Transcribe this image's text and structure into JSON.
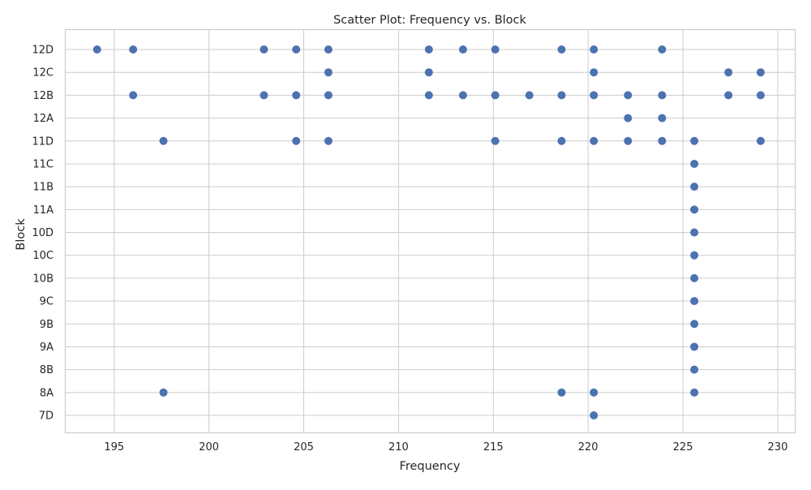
{
  "chart_data": {
    "type": "scatter",
    "title": "Scatter Plot: Frequency vs. Block",
    "xlabel": "Frequency",
    "ylabel": "Block",
    "xlim": [
      192.4,
      230.9
    ],
    "xticks": [
      195,
      200,
      205,
      210,
      215,
      220,
      225,
      230
    ],
    "y_categories": [
      "7D",
      "8A",
      "8B",
      "9A",
      "9B",
      "9C",
      "10B",
      "10C",
      "10D",
      "11A",
      "11B",
      "11C",
      "11D",
      "12A",
      "12B",
      "12C",
      "12D"
    ],
    "grid": true,
    "marker_color": "#4c72b0",
    "points": [
      {
        "x": 194.1,
        "y": "12D"
      },
      {
        "x": 196.0,
        "y": "12D"
      },
      {
        "x": 196.0,
        "y": "12B"
      },
      {
        "x": 197.6,
        "y": "11D"
      },
      {
        "x": 197.6,
        "y": "8A"
      },
      {
        "x": 202.9,
        "y": "12D"
      },
      {
        "x": 202.9,
        "y": "12B"
      },
      {
        "x": 204.6,
        "y": "12D"
      },
      {
        "x": 204.6,
        "y": "12B"
      },
      {
        "x": 204.6,
        "y": "11D"
      },
      {
        "x": 206.3,
        "y": "12D"
      },
      {
        "x": 206.3,
        "y": "12C"
      },
      {
        "x": 206.3,
        "y": "12B"
      },
      {
        "x": 206.3,
        "y": "11D"
      },
      {
        "x": 211.6,
        "y": "12D"
      },
      {
        "x": 211.6,
        "y": "12C"
      },
      {
        "x": 211.6,
        "y": "12B"
      },
      {
        "x": 213.4,
        "y": "12D"
      },
      {
        "x": 213.4,
        "y": "12B"
      },
      {
        "x": 215.1,
        "y": "12D"
      },
      {
        "x": 215.1,
        "y": "12B"
      },
      {
        "x": 215.1,
        "y": "11D"
      },
      {
        "x": 216.9,
        "y": "12B"
      },
      {
        "x": 218.6,
        "y": "12D"
      },
      {
        "x": 218.6,
        "y": "12B"
      },
      {
        "x": 218.6,
        "y": "11D"
      },
      {
        "x": 218.6,
        "y": "8A"
      },
      {
        "x": 220.3,
        "y": "12D"
      },
      {
        "x": 220.3,
        "y": "12C"
      },
      {
        "x": 220.3,
        "y": "12B"
      },
      {
        "x": 220.3,
        "y": "11D"
      },
      {
        "x": 220.3,
        "y": "8A"
      },
      {
        "x": 220.3,
        "y": "7D"
      },
      {
        "x": 222.1,
        "y": "12B"
      },
      {
        "x": 222.1,
        "y": "12A"
      },
      {
        "x": 222.1,
        "y": "11D"
      },
      {
        "x": 223.9,
        "y": "12D"
      },
      {
        "x": 223.9,
        "y": "12B"
      },
      {
        "x": 223.9,
        "y": "12A"
      },
      {
        "x": 223.9,
        "y": "11D"
      },
      {
        "x": 225.6,
        "y": "11D"
      },
      {
        "x": 225.6,
        "y": "11C"
      },
      {
        "x": 225.6,
        "y": "11B"
      },
      {
        "x": 225.6,
        "y": "11A"
      },
      {
        "x": 225.6,
        "y": "10D"
      },
      {
        "x": 225.6,
        "y": "10C"
      },
      {
        "x": 225.6,
        "y": "10B"
      },
      {
        "x": 225.6,
        "y": "9C"
      },
      {
        "x": 225.6,
        "y": "9B"
      },
      {
        "x": 225.6,
        "y": "9A"
      },
      {
        "x": 225.6,
        "y": "8B"
      },
      {
        "x": 225.6,
        "y": "8A"
      },
      {
        "x": 227.4,
        "y": "12C"
      },
      {
        "x": 227.4,
        "y": "12B"
      },
      {
        "x": 229.1,
        "y": "12C"
      },
      {
        "x": 229.1,
        "y": "12B"
      },
      {
        "x": 229.1,
        "y": "11D"
      }
    ]
  }
}
